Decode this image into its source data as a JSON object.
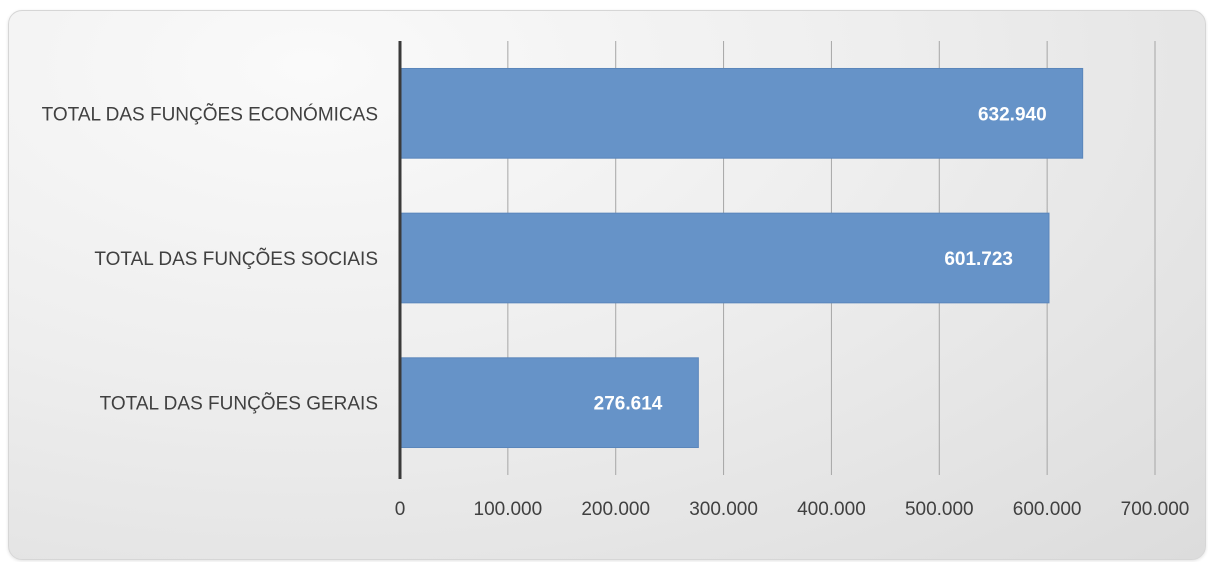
{
  "chart_data": {
    "type": "bar",
    "orientation": "horizontal",
    "categories": [
      "TOTAL DAS FUNÇÕES ECONÓMICAS",
      "TOTAL DAS FUNÇÕES SOCIAIS",
      "TOTAL DAS FUNÇÕES GERAIS"
    ],
    "values": [
      632940,
      601723,
      276614
    ],
    "data_labels": [
      "632.940",
      "601.723",
      "276.614"
    ],
    "xlim": [
      0,
      700000
    ],
    "x_ticks": [
      0,
      100000,
      200000,
      300000,
      400000,
      500000,
      600000,
      700000
    ],
    "x_tick_labels": [
      "0",
      "100.000",
      "200.000",
      "300.000",
      "400.000",
      "500.000",
      "600.000",
      "700.000"
    ],
    "grid": "vertical",
    "legend": "none",
    "colors": {
      "bar": "#6693c8",
      "bar_edge": "#5a86bb",
      "grid": "#a6a6a6",
      "axis": "#3a3a3a",
      "text": "#404040",
      "data_label": "#ffffff"
    }
  }
}
